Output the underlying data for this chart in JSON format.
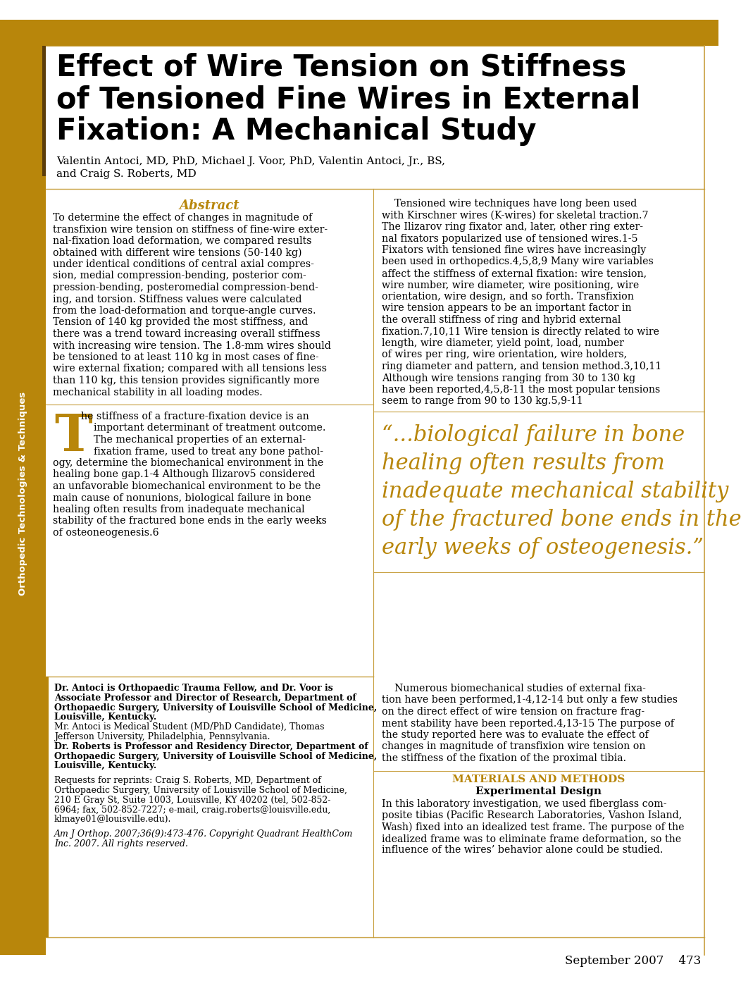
{
  "bg_color": "#ffffff",
  "gold_color": "#B8860B",
  "sidebar_color": "#B8860B",
  "border_color": "#C8A040",
  "title_line1": "Effect of Wire Tension on Stiffness",
  "title_line2": "of Tensioned Fine Wires in External",
  "title_line3": "Fixation: A Mechanical Study",
  "author_line1": "Valentin Antoci, MD, PhD, Michael J. Voor, PhD, Valentin Antoci, Jr., BS,",
  "author_line2": "and Craig S. Roberts, MD",
  "sidebar_text": "Orthopedic Technologies & Techniques",
  "abstract_title": "Abstract",
  "abstract_lines": [
    "To determine the effect of changes in magnitude of",
    "transfixion wire tension on stiffness of fine-wire exter-",
    "nal-fixation load deformation, we compared results",
    "obtained with different wire tensions (50-140 kg)",
    "under identical conditions of central axial compres-",
    "sion, medial compression-bending, posterior com-",
    "pression-bending, posteromedial compression-bend-",
    "ing, and torsion. Stiffness values were calculated",
    "from the load-deformation and torque-angle curves.",
    "Tension of 140 kg provided the most stiffness, and",
    "there was a trend toward increasing overall stiffness",
    "with increasing wire tension. The 1.8-mm wires should",
    "be tensioned to at least 110 kg in most cases of fine-",
    "wire external fixation; compared with all tensions less",
    "than 110 kg, this tension provides significantly more",
    "mechanical stability in all loading modes."
  ],
  "intro_drop": "T",
  "intro_beside_drop": [
    "he stiffness of a fracture-fixation device is an",
    "    important determinant of treatment outcome.",
    "    The mechanical properties of an external-",
    "    fixation frame, used to treat any bone pathol-"
  ],
  "intro_cont": [
    "ogy, determine the biomechanical environment in the",
    "healing bone gap.1-4 Although Ilizarov5 considered",
    "an unfavorable biomechanical environment to be the",
    "main cause of nonunions, biological failure in bone",
    "healing often results from inadequate mechanical",
    "stability of the fractured bone ends in the early weeks",
    "of osteoneogenesis.6"
  ],
  "bio_bold_lines": [
    [
      "bold",
      "Dr. Antoci is Orthopaedic Trauma Fellow, and Dr. Voor is"
    ],
    [
      "bold",
      "Associate Professor and Director of Research, Department of"
    ],
    [
      "bold",
      "Orthopaedic Surgery, University of Louisville School of Medicine,"
    ],
    [
      "bold",
      "Louisville, Kentucky."
    ],
    [
      "normal",
      "Mr. Antoci is Medical Student (MD/PhD Candidate), Thomas"
    ],
    [
      "normal",
      "Jefferson University, Philadelphia, Pennsylvania."
    ],
    [
      "bold",
      "Dr. Roberts is Professor and Residency Director, Department of"
    ],
    [
      "bold",
      "Orthopaedic Surgery, University of Louisville School of Medicine,"
    ],
    [
      "bold",
      "Louisville, Kentucky."
    ],
    [
      "gap",
      ""
    ],
    [
      "normal",
      "Requests for reprints: Craig S. Roberts, MD, Department of"
    ],
    [
      "normal",
      "Orthopaedic Surgery, University of Louisville School of Medicine,"
    ],
    [
      "normal",
      "210 E Gray St, Suite 1003, Louisville, KY 40202 (tel, 502-852-"
    ],
    [
      "normal",
      "6964; fax, 502-852-7227; e-mail, craig.roberts@louisville.edu,"
    ],
    [
      "normal",
      "klmaye01@louisville.edu)."
    ],
    [
      "gap",
      ""
    ],
    [
      "italic",
      "Am J Orthop. 2007;36(9):473-476. Copyright Quadrant HealthCom"
    ],
    [
      "italic",
      "Inc. 2007. All rights reserved."
    ]
  ],
  "right_intro_lines": [
    "    Tensioned wire techniques have long been used",
    "with Kirschner wires (K-wires) for skeletal traction.7",
    "The Ilizarov ring fixator and, later, other ring exter-",
    "nal fixators popularized use of tensioned wires.1-5",
    "Fixators with tensioned fine wires have increasingly",
    "been used in orthopedics.4,5,8,9 Many wire variables",
    "affect the stiffness of external fixation: wire tension,",
    "wire number, wire diameter, wire positioning, wire",
    "orientation, wire design, and so forth. Transfixion",
    "wire tension appears to be an important factor in",
    "the overall stiffness of ring and hybrid external",
    "fixation.7,10,11 Wire tension is directly related to wire",
    "length, wire diameter, yield point, load, number",
    "of wires per ring, wire orientation, wire holders,",
    "ring diameter and pattern, and tension method.3,10,11",
    "Although wire tensions ranging from 30 to 130 kg",
    "have been reported,4,5,8-11 the most popular tensions",
    "seem to range from 90 to 130 kg.5,9-11"
  ],
  "pullquote_lines": [
    "“...biological failure in bone",
    "healing often results from",
    "inadequate mechanical stability",
    "of the fractured bone ends in the",
    "early weeks of osteogenesis.”"
  ],
  "right_lower_lines": [
    "    Numerous biomechanical studies of external fixa-",
    "tion have been performed,1-4,12-14 but only a few studies",
    "on the direct effect of wire tension on fracture frag-",
    "ment stability have been reported.4,13-15 The purpose of",
    "the study reported here was to evaluate the effect of",
    "changes in magnitude of transfixion wire tension on",
    "the stiffness of the fixation of the proximal tibia."
  ],
  "mat_title": "MATERIALS AND METHODS",
  "exp_title": "Experimental Design",
  "exp_lines": [
    "In this laboratory investigation, we used fiberglass com-",
    "posite tibias (Pacific Research Laboratories, Vashon Island,",
    "Wash) fixed into an idealized test frame. The purpose of the",
    "idealized frame was to eliminate frame deformation, so the",
    "influence of the wires’ behavior alone could be studied."
  ],
  "footer": "September 2007    473"
}
